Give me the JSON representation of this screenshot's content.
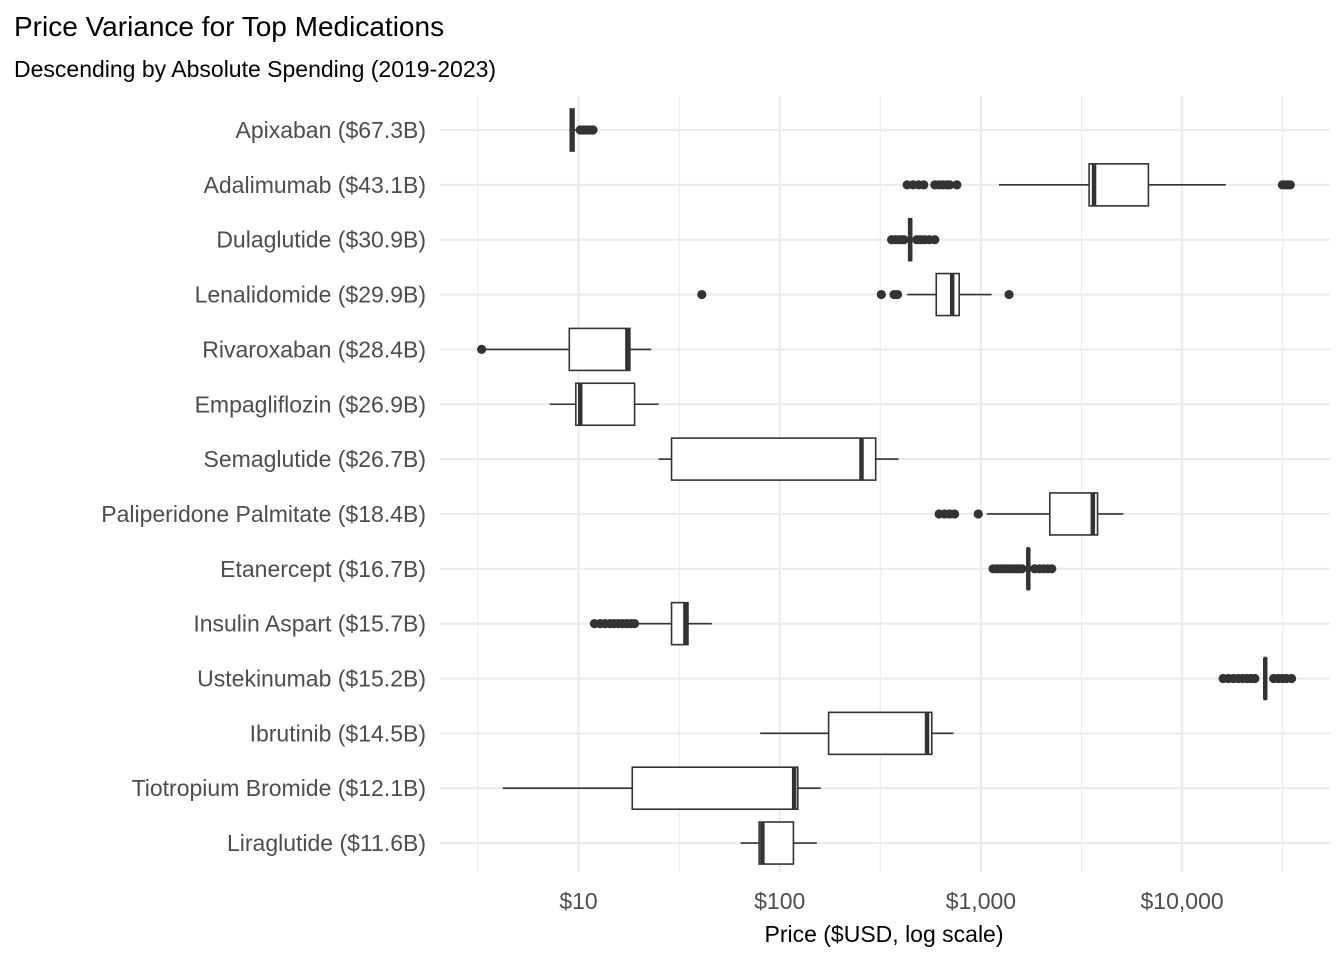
{
  "chart_data": {
    "type": "boxplot",
    "orientation": "horizontal",
    "title": "Price Variance for Top Medications",
    "subtitle": "Descending by Absolute Spending (2019-2023)",
    "xlabel": "Price ($USD, log scale)",
    "ylabel": "",
    "x_scale": "log10",
    "xlim": [
      2.5,
      45000
    ],
    "x_ticks": [
      10,
      100,
      1000,
      10000
    ],
    "x_tick_labels": [
      "$10",
      "$100",
      "$1,000",
      "$10,000"
    ],
    "grid": true,
    "legend": "none",
    "colors": {
      "box_stroke": "#333333",
      "grid": "#ebebeb",
      "box_fill": "#ffffff"
    },
    "categories": [
      "Apixaban ($67.3B)",
      "Adalimumab ($43.1B)",
      "Dulaglutide ($30.9B)",
      "Lenalidomide ($29.9B)",
      "Rivaroxaban ($28.4B)",
      "Empagliflozin ($26.9B)",
      "Semaglutide ($26.7B)",
      "Paliperidone Palmitate ($18.4B)",
      "Etanercept ($16.7B)",
      "Insulin Aspart ($15.7B)",
      "Ustekinumab ($15.2B)",
      "Ibrutinib ($14.5B)",
      "Tiotropium Bromide ($12.1B)",
      "Liraglutide ($11.6B)"
    ],
    "boxes": [
      {
        "whisker_low": 9.0,
        "q1": 9.1,
        "median": 9.3,
        "q3": 9.5,
        "whisker_high": 9.8,
        "outliers": [
          10.2,
          10.6,
          11.0,
          11.4,
          11.8
        ]
      },
      {
        "whisker_low": 1230,
        "q1": 3450,
        "median": 3650,
        "q3": 6800,
        "whisker_high": 16500,
        "outliers": [
          430,
          460,
          490,
          520,
          590,
          620,
          650,
          680,
          700,
          760,
          31500,
          32500,
          33500,
          34500
        ]
      },
      {
        "whisker_low": 430,
        "q1": 438,
        "median": 445,
        "q3": 452,
        "whisker_high": 465,
        "outliers": [
          360,
          375,
          390,
          405,
          415,
          480,
          500,
          525,
          555,
          590
        ]
      },
      {
        "whisker_low": 430,
        "q1": 600,
        "median": 720,
        "q3": 780,
        "whisker_high": 1130,
        "outliers": [
          41,
          320,
          370,
          385,
          1380
        ]
      },
      {
        "whisker_low": 3.3,
        "q1": 9.0,
        "median": 17.5,
        "q3": 18.0,
        "whisker_high": 23.0,
        "outliers": [
          3.3
        ]
      },
      {
        "whisker_low": 7.2,
        "q1": 9.7,
        "median": 10.2,
        "q3": 19.0,
        "whisker_high": 25.0,
        "outliers": []
      },
      {
        "whisker_low": 25.0,
        "q1": 29.0,
        "median": 255,
        "q3": 300,
        "whisker_high": 390,
        "outliers": []
      },
      {
        "whisker_low": 1070,
        "q1": 2200,
        "median": 3600,
        "q3": 3800,
        "whisker_high": 5100,
        "outliers": [
          620,
          660,
          700,
          740,
          970
        ]
      },
      {
        "whisker_low": 1700,
        "q1": 1710,
        "median": 1720,
        "q3": 1730,
        "whisker_high": 1740,
        "outliers": [
          1150,
          1200,
          1250,
          1300,
          1350,
          1400,
          1450,
          1500,
          1550,
          1600,
          1850,
          1950,
          2050,
          2150,
          2250
        ]
      },
      {
        "whisker_low": 20.0,
        "q1": 29.0,
        "median": 34.0,
        "q3": 35.0,
        "whisker_high": 46.0,
        "outliers": [
          12.0,
          12.8,
          13.5,
          14.3,
          15.0,
          15.8,
          16.6,
          17.4,
          18.2,
          19.0
        ]
      },
      {
        "whisker_low": 25500,
        "q1": 25700,
        "median": 25900,
        "q3": 26100,
        "whisker_high": 26300,
        "outliers": [
          16000,
          17000,
          18000,
          19000,
          20000,
          21000,
          22000,
          23000,
          28500,
          30000,
          31500,
          33000,
          35000
        ]
      },
      {
        "whisker_low": 80.0,
        "q1": 175,
        "median": 540,
        "q3": 570,
        "whisker_high": 730,
        "outliers": []
      },
      {
        "whisker_low": 4.2,
        "q1": 18.5,
        "median": 118,
        "q3": 123,
        "whisker_high": 160,
        "outliers": []
      },
      {
        "whisker_low": 64.0,
        "q1": 79.0,
        "median": 82.0,
        "q3": 117,
        "whisker_high": 153,
        "outliers": []
      }
    ]
  }
}
